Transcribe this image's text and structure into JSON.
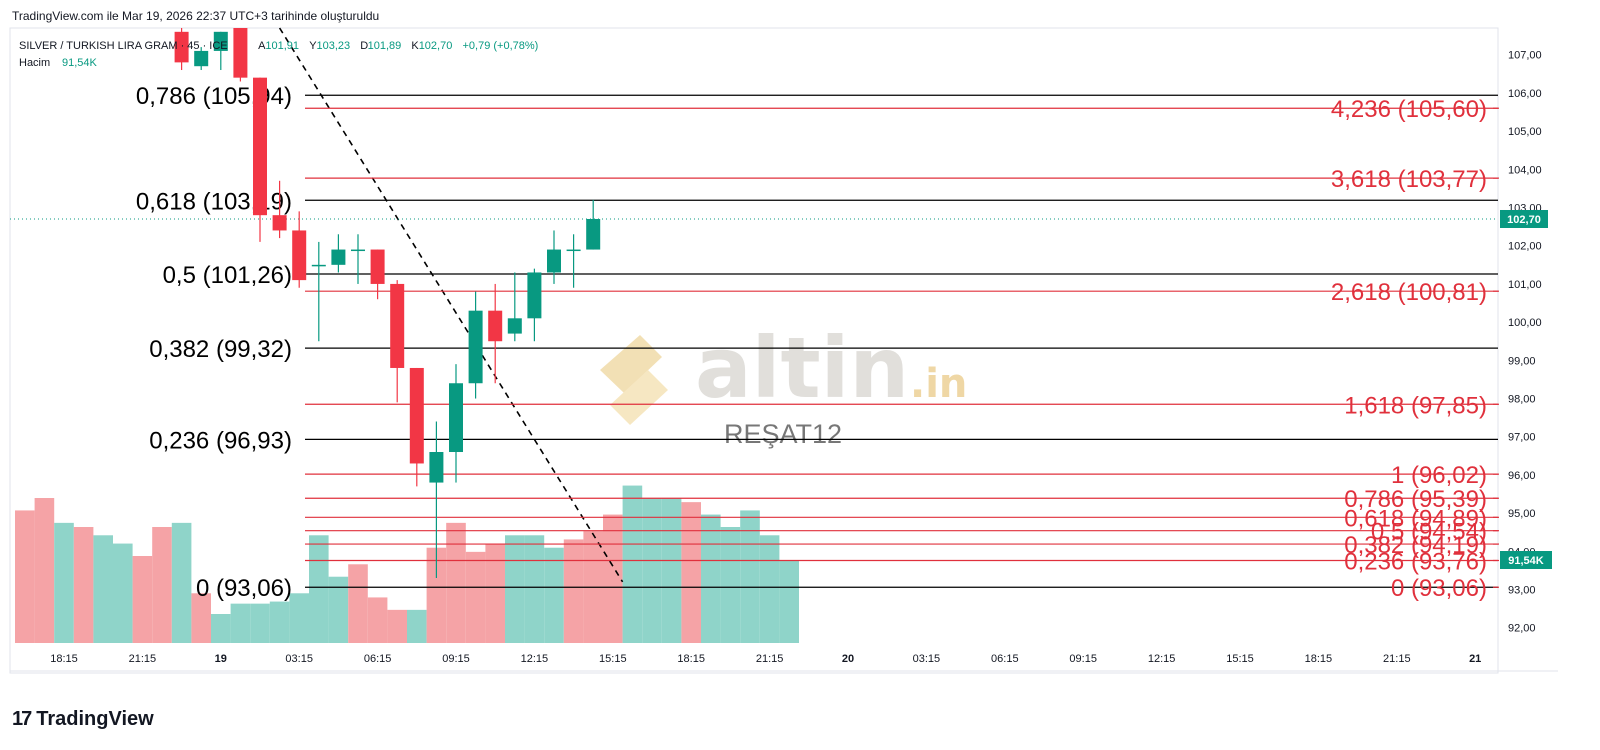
{
  "header": {
    "caption": "TradingView.com ile Mar 19, 2026 22:37 UTC+3 tarihinde oluşturuldu"
  },
  "legend": {
    "symbol": "SILVER / TURKISH LIRA GRAM · 45 · ICE",
    "o_label": "A",
    "o_value": "101,91",
    "h_label": "Y",
    "h_value": "103,23",
    "l_label": "D",
    "l_value": "101,89",
    "c_label": "K",
    "c_value": "102,70",
    "change": "+0,79 (+0,78%)",
    "volume_label": "Hacim",
    "volume_value": "91,54K"
  },
  "watermark": {
    "brand": "altin",
    "brand_suffix": ".in",
    "author": "REŞAT12"
  },
  "footer": {
    "logo_mark": "17",
    "logo_text": "TradingView"
  },
  "colors": {
    "up": "#089981",
    "down": "#f23645",
    "up_vol": "#8fd4c9",
    "down_vol": "#f5a3a6",
    "fib_black": "#000000",
    "fib_red": "#e0303c"
  },
  "chart_data": {
    "type": "candlestick",
    "price_axis": {
      "ylim": [
        91.6,
        107.7
      ],
      "ticks": [
        107,
        106,
        105,
        104,
        103,
        102,
        101,
        100,
        99,
        98,
        97,
        96,
        95,
        94,
        93,
        92
      ],
      "tick_labels": [
        "107,00",
        "106,00",
        "105,00",
        "104,00",
        "103,00",
        "102,00",
        "101,00",
        "100,00",
        "99,00",
        "98,00",
        "97,00",
        "96,00",
        "95,00",
        "94,00",
        "93,00",
        "92,00"
      ],
      "current_price": 102.7,
      "current_price_label": "102,70",
      "volume_badge_label": "91,54K"
    },
    "time_axis": {
      "labels": [
        "18:15",
        "21:15",
        "19",
        "03:15",
        "06:15",
        "09:15",
        "12:15",
        "15:15",
        "18:15",
        "21:15",
        "20",
        "03:15",
        "06:15",
        "09:15",
        "12:15",
        "15:15",
        "18:15",
        "21:15",
        "21"
      ],
      "label_bars": [
        2,
        6,
        10,
        14,
        18,
        22,
        26,
        30,
        34,
        38,
        42,
        46,
        50,
        54,
        58,
        62,
        66,
        70,
        74
      ],
      "bold_labels": [
        "19",
        "20",
        "21"
      ],
      "bar_count_span": 76
    },
    "candles": [
      {
        "o": 107.6,
        "h": 107.7,
        "l": 106.6,
        "c": 106.8
      },
      {
        "o": 106.7,
        "h": 107.2,
        "l": 106.6,
        "c": 107.1
      },
      {
        "o": 107.1,
        "h": 107.6,
        "l": 106.6,
        "c": 107.6
      },
      {
        "o": 107.7,
        "h": 107.7,
        "l": 106.3,
        "c": 106.4
      },
      {
        "o": 106.4,
        "h": 106.4,
        "l": 102.1,
        "c": 102.8
      },
      {
        "o": 102.8,
        "h": 103.7,
        "l": 102.2,
        "c": 102.4
      },
      {
        "o": 102.4,
        "h": 102.9,
        "l": 100.9,
        "c": 101.1
      },
      {
        "o": 101.5,
        "h": 102.1,
        "l": 99.5,
        "c": 101.5
      },
      {
        "o": 101.5,
        "h": 102.3,
        "l": 101.3,
        "c": 101.9
      },
      {
        "o": 101.9,
        "h": 102.3,
        "l": 101.0,
        "c": 101.9
      },
      {
        "o": 101.9,
        "h": 101.9,
        "l": 100.6,
        "c": 101.0
      },
      {
        "o": 101.0,
        "h": 101.1,
        "l": 97.9,
        "c": 98.8
      },
      {
        "o": 98.8,
        "h": 98.8,
        "l": 95.7,
        "c": 96.3
      },
      {
        "o": 95.8,
        "h": 97.4,
        "l": 93.3,
        "c": 96.6
      },
      {
        "o": 96.6,
        "h": 98.9,
        "l": 95.8,
        "c": 98.4
      },
      {
        "o": 98.4,
        "h": 100.8,
        "l": 98.0,
        "c": 100.3
      },
      {
        "o": 100.3,
        "h": 101.0,
        "l": 98.4,
        "c": 99.5
      },
      {
        "o": 99.7,
        "h": 101.3,
        "l": 99.5,
        "c": 100.1
      },
      {
        "o": 100.1,
        "h": 101.4,
        "l": 99.5,
        "c": 101.3
      },
      {
        "o": 101.3,
        "h": 102.4,
        "l": 101.0,
        "c": 101.9
      },
      {
        "o": 101.9,
        "h": 102.3,
        "l": 100.9,
        "c": 101.9
      },
      {
        "o": 101.9,
        "h": 103.2,
        "l": 101.9,
        "c": 102.7
      }
    ],
    "candle_start_bar": 8,
    "volume": {
      "ylim": [
        0,
        3.5
      ],
      "bars": [
        {
          "v": 3.2,
          "up": false
        },
        {
          "v": 3.5,
          "up": false
        },
        {
          "v": 2.9,
          "up": true
        },
        {
          "v": 2.8,
          "up": false
        },
        {
          "v": 2.6,
          "up": true
        },
        {
          "v": 2.4,
          "up": true
        },
        {
          "v": 2.1,
          "up": false
        },
        {
          "v": 2.8,
          "up": false
        },
        {
          "v": 2.9,
          "up": true
        },
        {
          "v": 1.2,
          "up": false
        },
        {
          "v": 0.7,
          "up": true
        },
        {
          "v": 0.95,
          "up": true
        },
        {
          "v": 0.95,
          "up": true
        },
        {
          "v": 1.0,
          "up": true
        },
        {
          "v": 1.2,
          "up": true
        },
        {
          "v": 2.6,
          "up": true
        },
        {
          "v": 1.6,
          "up": true
        },
        {
          "v": 1.9,
          "up": false
        },
        {
          "v": 1.1,
          "up": false
        },
        {
          "v": 0.8,
          "up": false
        },
        {
          "v": 0.8,
          "up": true
        },
        {
          "v": 2.3,
          "up": false
        },
        {
          "v": 2.9,
          "up": false
        },
        {
          "v": 2.2,
          "up": false
        },
        {
          "v": 2.4,
          "up": false
        },
        {
          "v": 2.6,
          "up": true
        },
        {
          "v": 2.6,
          "up": true
        },
        {
          "v": 2.3,
          "up": true
        },
        {
          "v": 2.5,
          "up": false
        },
        {
          "v": 2.7,
          "up": false
        },
        {
          "v": 3.1,
          "up": false
        },
        {
          "v": 3.8,
          "up": true
        },
        {
          "v": 3.5,
          "up": true
        },
        {
          "v": 3.5,
          "up": true
        },
        {
          "v": 3.4,
          "up": false
        },
        {
          "v": 3.1,
          "up": true
        },
        {
          "v": 2.8,
          "up": true
        },
        {
          "v": 3.2,
          "up": true
        },
        {
          "v": 2.6,
          "up": true
        },
        {
          "v": 2.0,
          "up": true
        }
      ]
    },
    "fib_retracement": [
      {
        "level": "0,786",
        "price": 105.94,
        "label": "0,786 (105,94)"
      },
      {
        "level": "0,618",
        "price": 103.19,
        "label": "0,618 (103,19)"
      },
      {
        "level": "0,5",
        "price": 101.26,
        "label": "0,5 (101,26)"
      },
      {
        "level": "0,382",
        "price": 99.32,
        "label": "0,382 (99,32)"
      },
      {
        "level": "0,236",
        "price": 96.93,
        "label": "0,236 (96,93)"
      },
      {
        "level": "0",
        "price": 93.06,
        "label": "0 (93,06)"
      }
    ],
    "fib_extension": [
      {
        "level": "4,236",
        "price": 105.6,
        "label": "4,236 (105,60)"
      },
      {
        "level": "3,618",
        "price": 103.77,
        "label": "3,618 (103,77)"
      },
      {
        "level": "2,618",
        "price": 100.81,
        "label": "2,618 (100,81)"
      },
      {
        "level": "1,618",
        "price": 97.85,
        "label": "1,618 (97,85)"
      },
      {
        "level": "1",
        "price": 96.02,
        "label": "1 (96,02)"
      },
      {
        "level": "0,786",
        "price": 95.39,
        "label": "0,786 (95,39)"
      },
      {
        "level": "0,618",
        "price": 94.89,
        "label": "0,618 (94,89)"
      },
      {
        "level": "0,5",
        "price": 94.54,
        "label": "0,5 (94,54)"
      },
      {
        "level": "0,382",
        "price": 94.19,
        "label": "0,382 (94,19)"
      },
      {
        "level": "0,236",
        "price": 93.76,
        "label": "0,236 (93,76)"
      },
      {
        "level": "0",
        "price": 93.06,
        "label": "0 (93,06)"
      }
    ],
    "trend_line": {
      "from_bar": 13.5,
      "from_price": 107.7,
      "to_bar": 31,
      "to_price": 93.2
    }
  }
}
